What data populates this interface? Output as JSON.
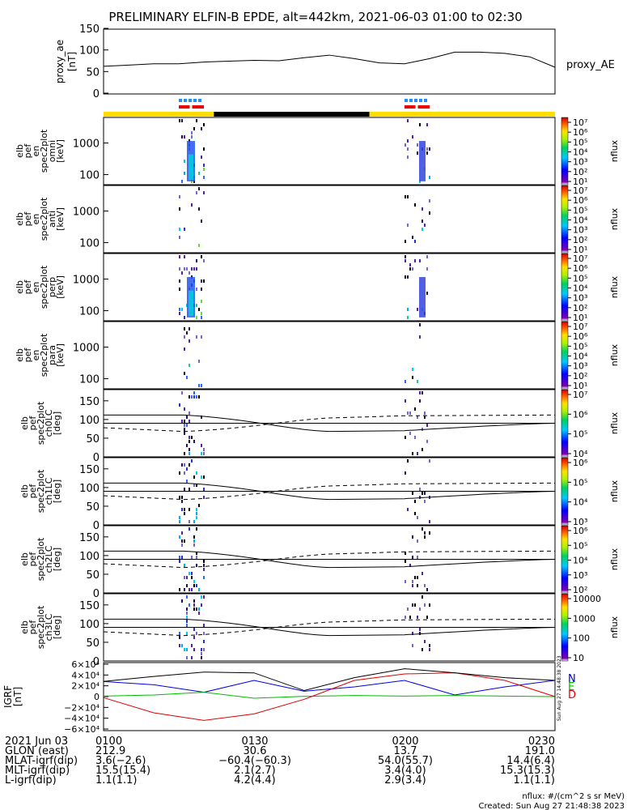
{
  "title": "PRELIMINARY ELFIN-B EPDE, alt=442km, 2021-06-03 01:00 to 02:30",
  "colors": {
    "orbit_yellow": "#ffdd00",
    "orbit_black": "#000000",
    "flag_blue": "#1e90ff",
    "flag_red": "#ee0000",
    "bx": "#0000dd",
    "by": "#00bb00",
    "bz": "#dd0000",
    "bmag": "#000000"
  },
  "panels": {
    "ae": {
      "ylabel": [
        "proxy_ae",
        "[nT]"
      ],
      "ticks": [
        "150",
        "100",
        "50",
        "0"
      ],
      "legend": "proxy_AE"
    },
    "omni": {
      "ylabel": [
        "elb",
        "pef",
        "en",
        "spec2plot",
        "omni",
        "[keV]"
      ],
      "ticks": [
        "1000",
        "100"
      ],
      "cbar_ticks": [
        "10⁷",
        "10⁶",
        "10⁵",
        "10⁴",
        "10³",
        "10²",
        "10¹"
      ],
      "cbar_label": "nflux"
    },
    "anti": {
      "ylabel": [
        "elb",
        "pef",
        "en",
        "spec2plot",
        "anti",
        "[keV]"
      ],
      "ticks": [
        "1000",
        "100"
      ],
      "cbar_ticks": [
        "10⁷",
        "10⁶",
        "10⁵",
        "10⁴",
        "10³",
        "10²",
        "10¹"
      ],
      "cbar_label": "nflux"
    },
    "perp": {
      "ylabel": [
        "elb",
        "pef",
        "en",
        "spec2plot",
        "perp",
        "[keV]"
      ],
      "ticks": [
        "1000",
        "100"
      ],
      "cbar_ticks": [
        "10⁷",
        "10⁶",
        "10⁵",
        "10⁴",
        "10³",
        "10²",
        "10¹"
      ],
      "cbar_label": "nflux"
    },
    "para": {
      "ylabel": [
        "elb",
        "pef",
        "en",
        "spec2plot",
        "para",
        "[keV]"
      ],
      "ticks": [
        "1000",
        "100"
      ],
      "cbar_ticks": [
        "10⁷",
        "10⁶",
        "10⁵",
        "10⁴",
        "10³",
        "10²",
        "10¹"
      ],
      "cbar_label": "nflux"
    },
    "ch0": {
      "ylabel": [
        "elb",
        "pef",
        "spec2plot",
        "ch0LC",
        "[deg]"
      ],
      "ticks": [
        "150",
        "100",
        "50",
        "0"
      ],
      "cbar_ticks": [
        "10⁷",
        "10⁶",
        "10⁵",
        "10⁴"
      ],
      "cbar_label": "nflux"
    },
    "ch1": {
      "ylabel": [
        "elb",
        "pef",
        "spec2plot",
        "ch1LC",
        "[deg]"
      ],
      "ticks": [
        "150",
        "100",
        "50",
        "0"
      ],
      "cbar_ticks": [
        "10⁶",
        "10⁵",
        "10⁴",
        "10³"
      ],
      "cbar_label": "nflux"
    },
    "ch2": {
      "ylabel": [
        "elb",
        "pef",
        "spec2plot",
        "ch2LC",
        "[deg]"
      ],
      "ticks": [
        "150",
        "100",
        "50",
        "0"
      ],
      "cbar_ticks": [
        "10⁶",
        "10⁵",
        "10⁴",
        "10³",
        "10²"
      ],
      "cbar_label": "nflux"
    },
    "ch3": {
      "ylabel": [
        "elb",
        "pef",
        "spec2plot",
        "ch3LC",
        "[deg]"
      ],
      "ticks": [
        "150",
        "100",
        "50",
        "0"
      ],
      "cbar_ticks": [
        "10000",
        "1000",
        "100",
        "10"
      ],
      "cbar_label": "nflux"
    },
    "igrf": {
      "ylabel": [
        "IGRF",
        "[nT]"
      ],
      "ticks": [
        "6×10⁴",
        "4×10⁴",
        "2×10⁴",
        "0",
        "−2×10⁴",
        "−4×10⁴",
        "−6×10⁴"
      ],
      "legend": [
        "N",
        "E",
        "D"
      ]
    }
  },
  "side_stamp": "Sun Aug 27 14:48:38 2023",
  "footer": {
    "rows": [
      {
        "label": "2021 Jun 03",
        "values": [
          "0100",
          "0130",
          "0200",
          "0230"
        ]
      },
      {
        "label": "GLON (east)",
        "values": [
          "212.9",
          "30.6",
          "13.7",
          "191.0"
        ]
      },
      {
        "label": "MLAT-igrf(dip)",
        "values": [
          "3.6(−2.6)",
          "−60.4(−60.3)",
          "54.0(55.7)",
          "14.4(6.4)"
        ]
      },
      {
        "label": "MLT-igrf(dip)",
        "values": [
          "15.5(15.4)",
          "2.1(2.7)",
          "3.4(4.0)",
          "15.3(15.3)"
        ]
      },
      {
        "label": "L-igrf(dip)",
        "values": [
          "1.1(1.1)",
          "4.2(4.4)",
          "2.9(3.4)",
          "1.1(1.1)"
        ]
      }
    ],
    "units_note": "nflux: #/(cm^2 s sr MeV)",
    "created": "Created: Sun Aug 27 21:48:38 2023"
  },
  "chart_data": {
    "type": "line",
    "title": "PRELIMINARY ELFIN-B EPDE, alt=442km, 2021-06-03 01:00 to 02:30",
    "x_range_utc": [
      "01:00",
      "02:30"
    ],
    "proxy_ae": {
      "ylim": [
        0,
        150
      ],
      "x_min": [
        0,
        5,
        10,
        15,
        20,
        25,
        30,
        35,
        40,
        45,
        50,
        55,
        60,
        65,
        70,
        75,
        80,
        85,
        90
      ],
      "values": [
        62,
        65,
        68,
        68,
        72,
        74,
        76,
        75,
        82,
        88,
        80,
        70,
        68,
        80,
        95,
        95,
        92,
        84,
        60
      ]
    },
    "science_zones_utc": [
      [
        "01:15",
        "01:20"
      ],
      [
        "02:00",
        "02:05"
      ]
    ],
    "orbit_bar": [
      {
        "from": "01:00",
        "to": "01:22",
        "color": "yellow"
      },
      {
        "from": "01:22",
        "to": "01:53",
        "color": "black"
      },
      {
        "from": "01:53",
        "to": "02:30",
        "color": "yellow"
      }
    ],
    "igrf": {
      "ylim": [
        -60000,
        60000
      ],
      "x_min": [
        0,
        10,
        20,
        30,
        40,
        50,
        60,
        70,
        80,
        90
      ],
      "series": [
        {
          "name": "N",
          "values": [
            28000,
            22000,
            8000,
            30000,
            10000,
            18000,
            30000,
            3000,
            18000,
            30000
          ]
        },
        {
          "name": "E",
          "values": [
            1000,
            3000,
            8000,
            -3000,
            500,
            2000,
            1000,
            2000,
            1000,
            0
          ]
        },
        {
          "name": "D",
          "values": [
            -2000,
            -30000,
            -44000,
            -32000,
            -5000,
            30000,
            42000,
            44000,
            30000,
            0
          ]
        }
      ]
    }
  }
}
